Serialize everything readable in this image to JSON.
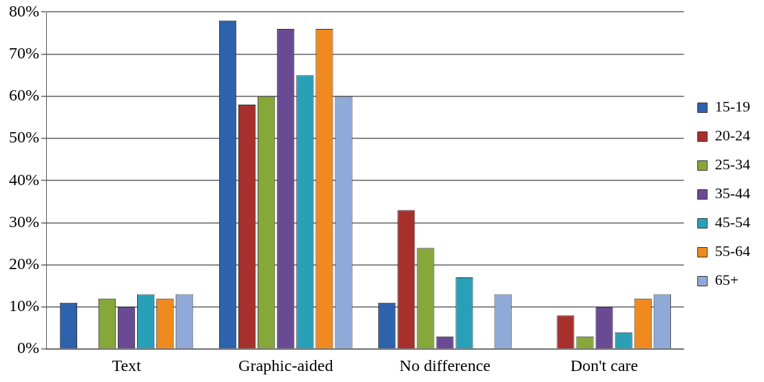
{
  "chart_data": {
    "type": "bar",
    "categories": [
      "Text",
      "Graphic-aided",
      "No difference",
      "Don't care"
    ],
    "series": [
      {
        "name": "15-19",
        "color": "#2e62ad",
        "values": [
          11,
          78,
          11,
          0
        ]
      },
      {
        "name": "20-24",
        "color": "#a8302c",
        "values": [
          0,
          58,
          33,
          8
        ]
      },
      {
        "name": "25-34",
        "color": "#86a83a",
        "values": [
          12,
          60,
          24,
          3
        ]
      },
      {
        "name": "35-44",
        "color": "#6a4a93",
        "values": [
          10,
          76,
          3,
          10
        ]
      },
      {
        "name": "45-54",
        "color": "#2aa0b8",
        "values": [
          13,
          65,
          17,
          4
        ]
      },
      {
        "name": "55-64",
        "color": "#f08a1e",
        "values": [
          12,
          76,
          0,
          12
        ]
      },
      {
        "name": "65+",
        "color": "#8fa9d8",
        "values": [
          13,
          60,
          13,
          13
        ]
      }
    ],
    "ylim": [
      0,
      80
    ],
    "yticks": [
      {
        "value": 0,
        "label": "0%"
      },
      {
        "value": 10,
        "label": "10%"
      },
      {
        "value": 20,
        "label": "20%"
      },
      {
        "value": 30,
        "label": "30%"
      },
      {
        "value": 40,
        "label": "40%"
      },
      {
        "value": 50,
        "label": "50%"
      },
      {
        "value": 60,
        "label": "60%"
      },
      {
        "value": 70,
        "label": "70%"
      },
      {
        "value": 80,
        "label": "80%"
      }
    ],
    "grid": "y",
    "legend": "right"
  }
}
